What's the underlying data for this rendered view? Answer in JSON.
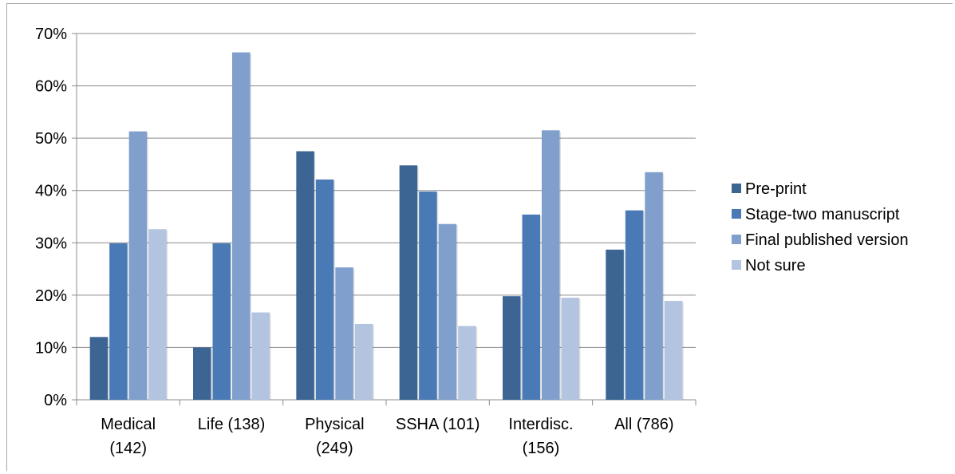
{
  "chart_data": {
    "type": "bar",
    "categories": [
      [
        "Medical",
        "(142)"
      ],
      [
        "Life (138)"
      ],
      [
        "Physical",
        "(249)"
      ],
      [
        "SSHA (101)"
      ],
      [
        "Interdisc.",
        "(156)"
      ],
      [
        "All (786)"
      ]
    ],
    "series": [
      {
        "name": "Pre-print",
        "color": "#3d6594",
        "values": [
          12,
          10,
          47.5,
          44.8,
          19.8,
          28.7
        ]
      },
      {
        "name": "Stage-two manuscript",
        "color": "#4a7ab5",
        "values": [
          29.9,
          29.9,
          42.1,
          39.8,
          35.4,
          36.2
        ]
      },
      {
        "name": "Final published version",
        "color": "#809fcd",
        "values": [
          51.3,
          66.4,
          25.3,
          33.6,
          51.5,
          43.5
        ]
      },
      {
        "name": "Not sure",
        "color": "#b3c4e0",
        "values": [
          32.6,
          16.7,
          14.5,
          14.1,
          19.5,
          18.9
        ]
      }
    ],
    "ylim": [
      0,
      70
    ],
    "yticks": [
      "0%",
      "10%",
      "20%",
      "30%",
      "40%",
      "50%",
      "60%",
      "70%"
    ],
    "grid": true,
    "legend": "right"
  }
}
